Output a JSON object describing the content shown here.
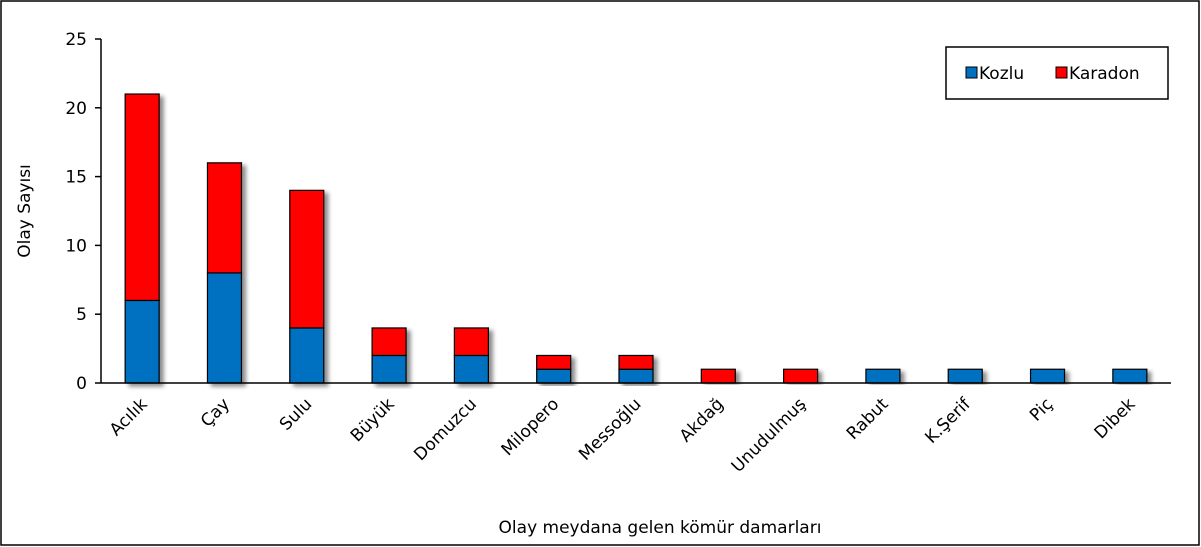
{
  "chart_data": {
    "type": "stacked_bar",
    "x_label": "Olay meydana gelen kömür damarları",
    "y_label": "Olay Sayısı",
    "categories": [
      "Acılık",
      "Çay",
      "Sulu",
      "Büyük",
      "Domuzcu",
      "Milopero",
      "Messoğlu",
      "Akdağ",
      "Unudulmuş",
      "Rabut",
      "K.Şerif",
      "Piç",
      "Dibek"
    ],
    "series": [
      {
        "name": "Kozlu",
        "color": "#0070c0",
        "values": [
          6,
          8,
          4,
          2,
          2,
          1,
          1,
          0,
          0,
          1,
          1,
          1,
          1
        ]
      },
      {
        "name": "Karadon",
        "color": "#ff0000",
        "values": [
          15,
          8,
          10,
          2,
          2,
          1,
          1,
          1,
          1,
          0,
          0,
          0,
          0
        ]
      }
    ],
    "ylim": [
      0,
      25
    ],
    "yticks": [
      0,
      5,
      10,
      15,
      20,
      25
    ],
    "grid": false,
    "legend": "upper right"
  }
}
